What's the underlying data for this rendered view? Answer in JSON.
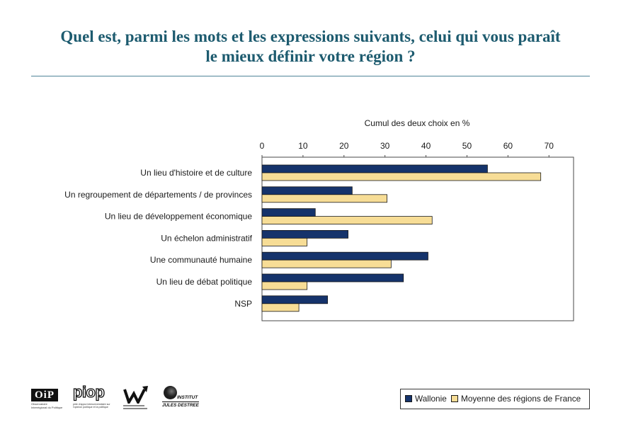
{
  "title": {
    "line1": "Quel est, parmi les mots et les expressions suivants, celui qui vous paraît",
    "line2": "le mieux définir votre région ?"
  },
  "colors": {
    "title": "#1d5b6f",
    "rule": "#4f8599",
    "wallonie": "#15336b",
    "france": "#f7dd96",
    "bar_outline": "#1a1a1a"
  },
  "chart_data": {
    "type": "bar",
    "orientation": "horizontal",
    "xlabel": "Cumul des deux choix en %",
    "xlim": [
      0,
      76
    ],
    "ticks": [
      0,
      10,
      20,
      30,
      40,
      50,
      60,
      70
    ],
    "grid": false,
    "legend": "bottom-right",
    "categories": [
      "Un lieu d'histoire et de culture",
      "Un regroupement de départements / de provinces",
      "Un lieu de développement économique",
      "Un échelon administratif",
      "Une communauté humaine",
      "Un lieu de débat politique",
      "NSP"
    ],
    "series": [
      {
        "name": "Wallonie",
        "color": "#15336b",
        "values": [
          55,
          22,
          13,
          21,
          40.5,
          34.5,
          16
        ]
      },
      {
        "name": "Moyenne des régions de France",
        "color": "#f7dd96",
        "values": [
          68,
          30.5,
          41.5,
          11,
          31.5,
          11,
          9
        ]
      }
    ]
  },
  "logos": {
    "oip": {
      "mark": "OiP",
      "caption": [
        "Observatoire",
        "Interrégional du Politique"
      ]
    },
    "piop": {
      "mark": "piop",
      "caption": [
        "pôle d'appui interuniversitaire sur",
        "l'opinion publique et la politique"
      ]
    },
    "ijd": {
      "line1": "INSTITUT",
      "line2": "JULES DESTREE"
    }
  }
}
